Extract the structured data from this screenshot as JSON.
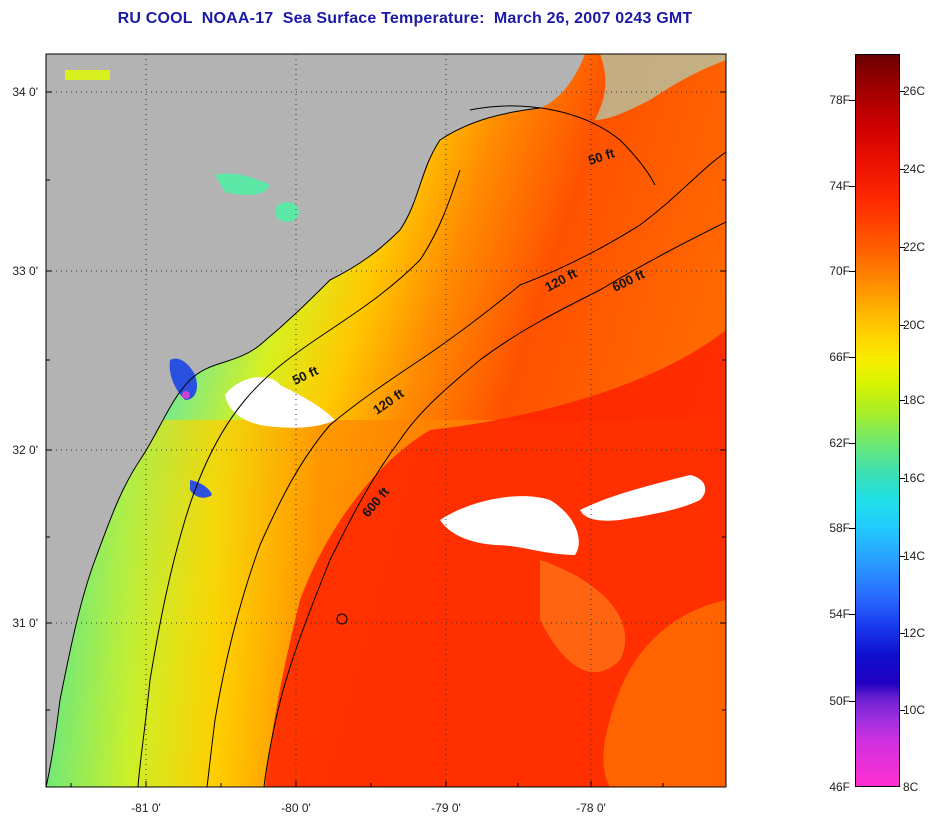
{
  "title": "RU COOL  NOAA-17  Sea Surface Temperature:  March 26, 2007 0243 GMT",
  "map": {
    "latitude_labels": [
      "34 0'",
      "33 0'",
      "32 0'",
      "31 0'"
    ],
    "longitude_labels": [
      "-81 0'",
      "-80 0'",
      "-79 0'",
      "-78 0'"
    ],
    "isobath_labels": [
      "50 ft",
      "50 ft",
      "120 ft",
      "120 ft",
      "600 ft",
      "600 ft"
    ],
    "colors": {
      "land": "#b3b3b3",
      "cloud": "#ffffff",
      "coastline": "#000000"
    }
  },
  "colorbar": {
    "fahrenheit_labels": [
      "78F",
      "74F",
      "70F",
      "66F",
      "62F",
      "58F",
      "54F",
      "50F",
      "46F"
    ],
    "celsius_labels": [
      "26C",
      "24C",
      "22C",
      "20C",
      "18C",
      "16C",
      "14C",
      "12C",
      "10C",
      "8C"
    ]
  }
}
